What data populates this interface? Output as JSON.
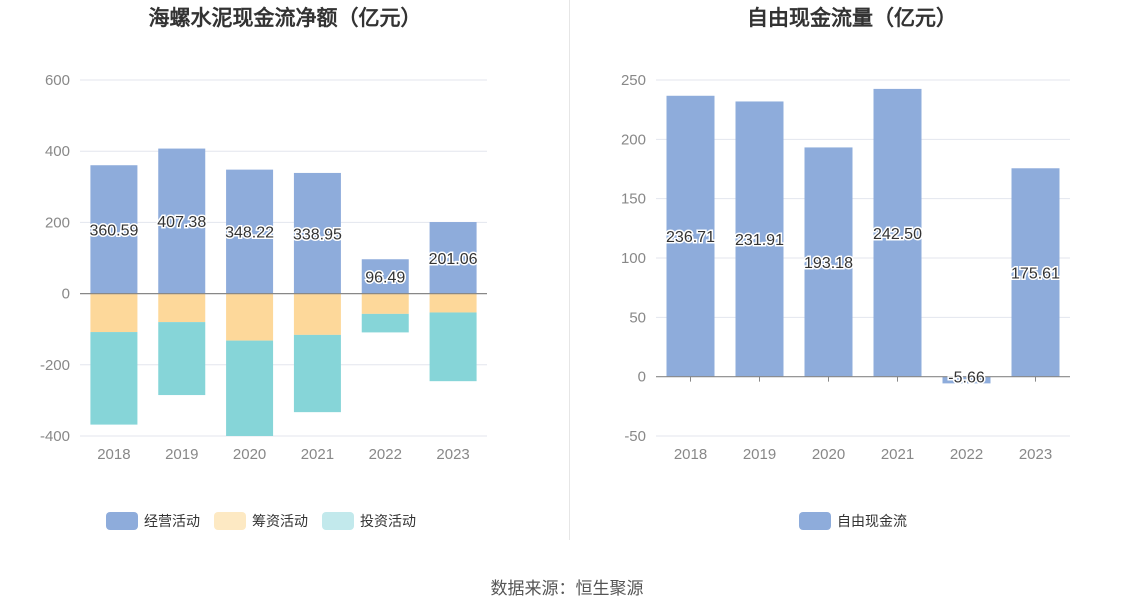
{
  "source_label": "数据来源：恒生聚源",
  "chart_data": [
    {
      "type": "bar",
      "stacked": true,
      "title": "海螺水泥现金流净额（亿元）",
      "categories": [
        "2018",
        "2019",
        "2020",
        "2021",
        "2022",
        "2023"
      ],
      "ylim": [
        -400,
        600
      ],
      "yticks": [
        600,
        400,
        200,
        0,
        -200,
        -400
      ],
      "grid": true,
      "legend_position": "bottom",
      "series": [
        {
          "name": "经营活动",
          "color": "#8eacdb",
          "values": [
            360.59,
            407.38,
            348.22,
            338.95,
            96.49,
            201.06
          ]
        },
        {
          "name": "筹资活动",
          "color": "#fdd89a",
          "values": [
            -108,
            -80,
            -132,
            -116,
            -57,
            -53
          ]
        },
        {
          "name": "投资活动",
          "color": "#86d5d8",
          "values": [
            -260,
            -205,
            -268,
            -217,
            -52,
            -193
          ]
        }
      ],
      "data_labels": [
        "360.59",
        "407.38",
        "348.22",
        "338.95",
        "96.49",
        "201.06"
      ],
      "legend_colors": [
        "#8eacdb",
        "#fde9c3",
        "#c2e9ec"
      ]
    },
    {
      "type": "bar",
      "title": "自由现金流量（亿元）",
      "categories": [
        "2018",
        "2019",
        "2020",
        "2021",
        "2022",
        "2023"
      ],
      "ylim": [
        -50,
        250
      ],
      "yticks": [
        250,
        200,
        150,
        100,
        50,
        0,
        -50
      ],
      "grid": true,
      "legend_position": "bottom",
      "series": [
        {
          "name": "自由现金流",
          "color": "#8eacdb",
          "values": [
            236.71,
            231.91,
            193.18,
            242.5,
            -5.66,
            175.61
          ]
        }
      ],
      "data_labels": [
        "236.71",
        "231.91",
        "193.18",
        "242.50",
        "-5.66",
        "175.61"
      ]
    }
  ]
}
